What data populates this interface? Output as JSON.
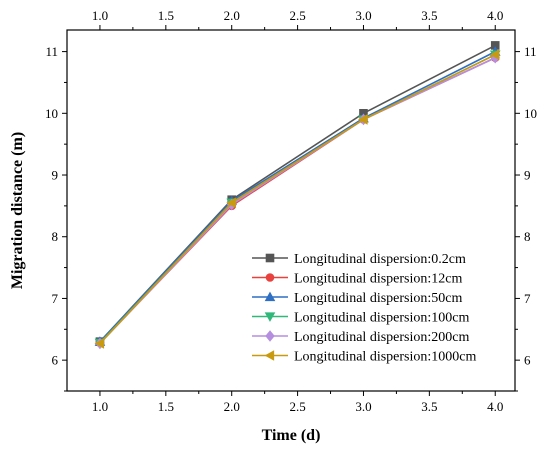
{
  "chart_data": {
    "type": "line",
    "xlabel": "Time (d)",
    "ylabel": "Migration distance (m)",
    "xlim": [
      0.75,
      4.15
    ],
    "ylim": [
      5.5,
      11.35
    ],
    "x_ticks": [
      1.0,
      1.5,
      2.0,
      2.5,
      3.0,
      3.5,
      4.0
    ],
    "y_ticks": [
      6,
      7,
      8,
      9,
      10,
      11
    ],
    "x_tick_labels": [
      "1.0",
      "1.5",
      "2.0",
      "2.5",
      "3.0",
      "3.5",
      "4.0"
    ],
    "y_tick_labels": [
      "6",
      "7",
      "8",
      "9",
      "10",
      "11"
    ],
    "top_axis_labels": true,
    "right_axis_labels": true,
    "grid": false,
    "legend_position": "bottom-right",
    "x": [
      1,
      2,
      3,
      4
    ],
    "series": [
      {
        "name": "Longitudinal dispersion:0.2cm",
        "color": "#555555",
        "marker": "square",
        "values": [
          6.3,
          8.6,
          10.0,
          11.1
        ]
      },
      {
        "name": "Longitudinal dispersion:12cm",
        "color": "#e8413e",
        "marker": "circle",
        "values": [
          6.28,
          8.5,
          9.9,
          10.9
        ]
      },
      {
        "name": "Longitudinal dispersion:50cm",
        "color": "#2f6fc4",
        "marker": "triangle-up",
        "values": [
          6.3,
          8.58,
          9.92,
          11.0
        ]
      },
      {
        "name": "Longitudinal dispersion:100cm",
        "color": "#2fb87a",
        "marker": "triangle-down",
        "values": [
          6.28,
          8.55,
          9.9,
          10.95
        ]
      },
      {
        "name": "Longitudinal dispersion:200cm",
        "color": "#b58ee0",
        "marker": "diamond",
        "values": [
          6.27,
          8.52,
          9.9,
          10.9
        ]
      },
      {
        "name": "Longitudinal dispersion:1000cm",
        "color": "#c89a10",
        "marker": "triangle-left",
        "values": [
          6.27,
          8.55,
          9.9,
          10.95
        ]
      }
    ]
  }
}
